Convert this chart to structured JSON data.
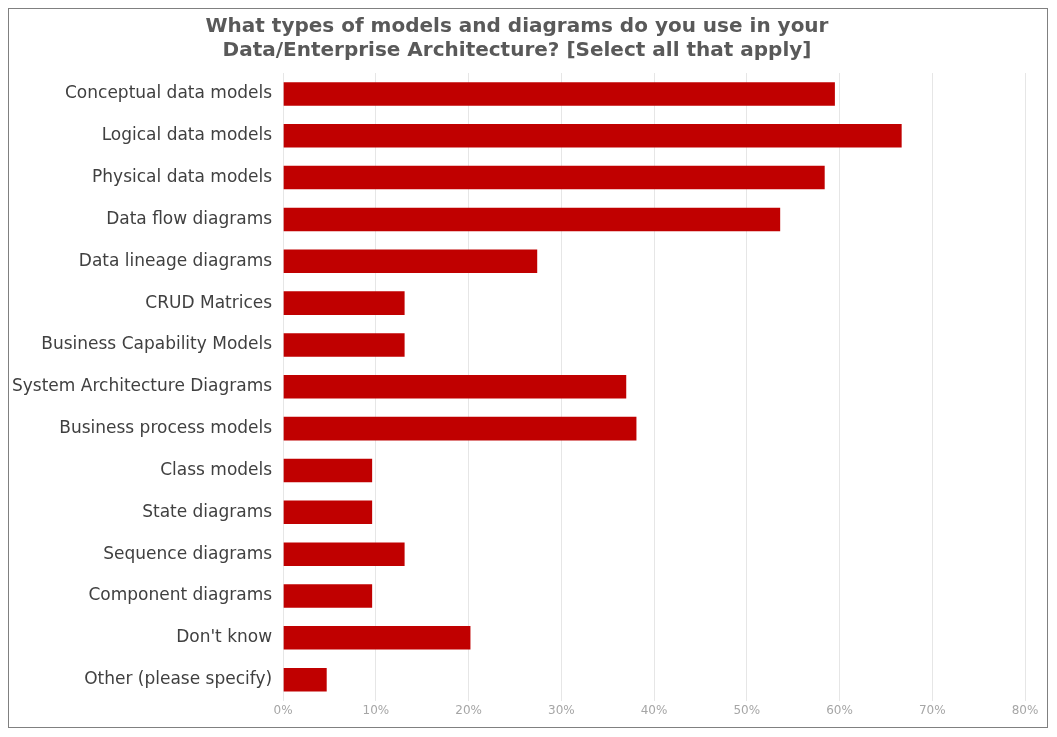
{
  "chart_data": {
    "type": "bar",
    "orientation": "horizontal",
    "title": "What types of models and diagrams do you use in your Data/Enterprise Architecture? [Select all that apply]",
    "categories": [
      "Conceptual data models",
      "Logical data models",
      "Physical data models",
      "Data flow diagrams",
      "Data lineage diagrams",
      "CRUD Matrices",
      "Business Capability Models",
      "System Architecture Diagrams",
      "Business process models",
      "Class models",
      "State diagrams",
      "Sequence diagrams",
      "Component diagrams",
      "Don't know",
      "Other (please specify)"
    ],
    "values": [
      59.5,
      66.7,
      58.4,
      53.6,
      27.4,
      13.1,
      13.1,
      37.0,
      38.1,
      9.6,
      9.6,
      13.1,
      9.6,
      20.2,
      4.7
    ],
    "color": "#c00000",
    "xlim": [
      0,
      80
    ],
    "xticks": [
      {
        "value": 0,
        "label": "0%"
      },
      {
        "value": 10,
        "label": "10%"
      },
      {
        "value": 20,
        "label": "20%"
      },
      {
        "value": 30,
        "label": "30%"
      },
      {
        "value": 40,
        "label": "40%"
      },
      {
        "value": 50,
        "label": "50%"
      },
      {
        "value": 60,
        "label": "60%"
      },
      {
        "value": 70,
        "label": "70%"
      },
      {
        "value": 80,
        "label": "80%"
      }
    ],
    "grid": "x",
    "legend": false
  }
}
